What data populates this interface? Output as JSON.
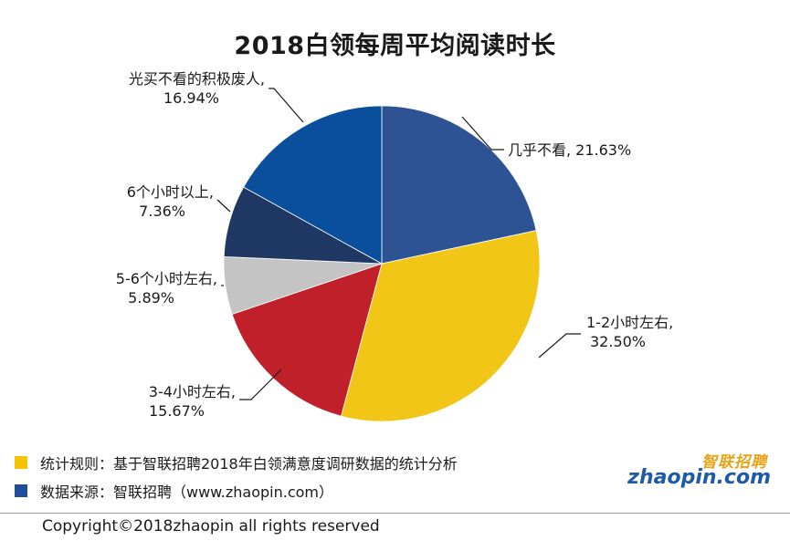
{
  "chart_data": {
    "type": "pie",
    "title": "2018白领每周平均阅读时长",
    "slices": [
      {
        "label": "几乎不看,",
        "value": 21.63,
        "value_text": "21.63%",
        "color": "#2e5394"
      },
      {
        "label": "1-2小时左右,",
        "value": 32.5,
        "value_text": "32.50%",
        "color": "#f2c617"
      },
      {
        "label": "3-4小时左右,",
        "value": 15.67,
        "value_text": "15.67%",
        "color": "#c0202a"
      },
      {
        "label": "5-6个小时左右,",
        "value": 5.89,
        "value_text": "5.89%",
        "color": "#c4c4c4"
      },
      {
        "label": "6个小时以上,",
        "value": 7.36,
        "value_text": "7.36%",
        "color": "#1f3863"
      },
      {
        "label": "光买不看的积极废人,",
        "value": 16.94,
        "value_text": "16.94%",
        "color": "#0a4f9c"
      }
    ]
  },
  "footer": {
    "note_rule": "统计规则：基于智联招聘2018年白领满意度调研数据的统计分析",
    "note_source": "数据来源：智联招聘（www.zhaopin.com）",
    "rule_color": "#f5c400",
    "source_color": "#1f4e9c",
    "copyright": "Copyright©2018zhaopin all rights reserved"
  },
  "logo": {
    "cn": "智联招聘",
    "en": "zhaopin.com",
    "icon": "zhaopin-logo"
  }
}
